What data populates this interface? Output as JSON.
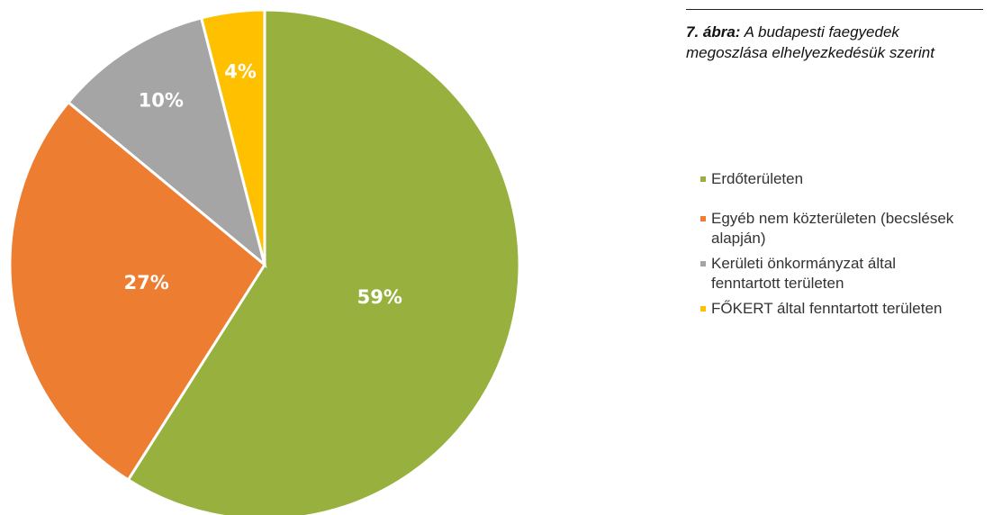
{
  "chart_data": {
    "type": "pie",
    "title_label": "7. ábra:",
    "title": "A budapesti faegyedek megoszlása elhelyezkedésük szerint",
    "categories": [
      "Erdőterületen",
      "Egyéb nem közterületen (becslések alapján)",
      "Kerületi önkormányzat által fenntartott területen",
      "FŐKERT által fenntartott területen"
    ],
    "values": [
      59,
      27,
      10,
      4
    ],
    "value_labels": [
      "59%",
      "27%",
      "10%",
      "4%"
    ],
    "colors": [
      "#97b03e",
      "#ed7d31",
      "#a5a5a5",
      "#ffc000"
    ],
    "legend": "right"
  }
}
